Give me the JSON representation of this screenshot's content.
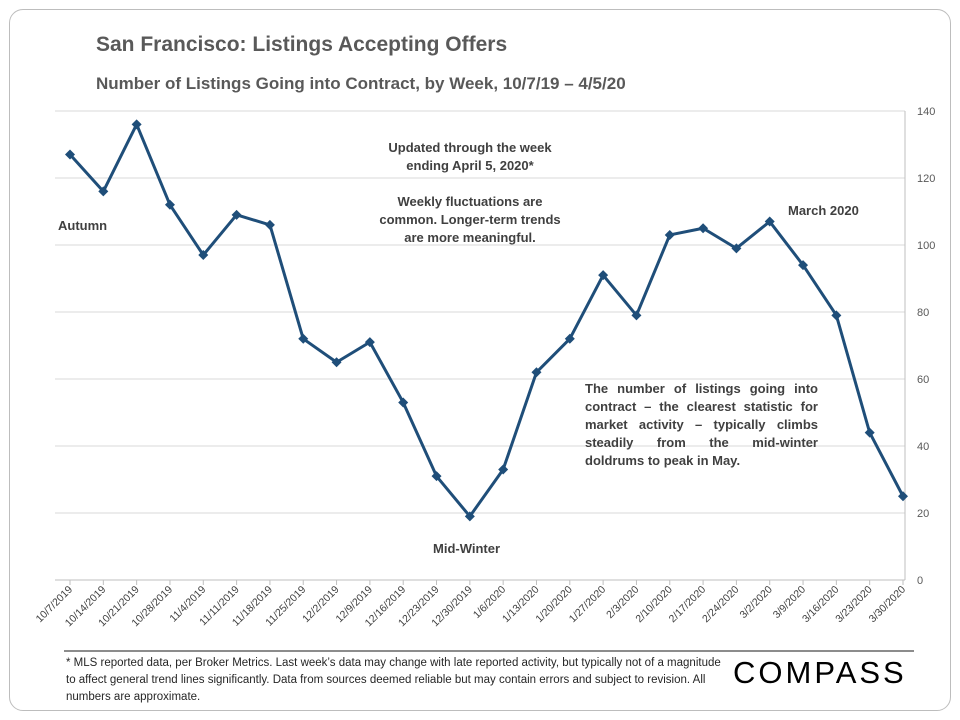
{
  "chart_data": {
    "type": "line",
    "title": "San Francisco: Listings Accepting Offers",
    "subtitle": "Number of Listings Going into Contract, by Week, 10/7/19 – 4/5/20",
    "categories": [
      "10/7/2019",
      "10/14/2019",
      "10/21/2019",
      "10/28/2019",
      "11/4/2019",
      "11/11/2019",
      "11/18/2019",
      "11/25/2019",
      "12/2/2019",
      "12/9/2019",
      "12/16/2019",
      "12/23/2019",
      "12/30/2019",
      "1/6/2020",
      "1/13/2020",
      "1/20/2020",
      "1/27/2020",
      "2/3/2020",
      "2/10/2020",
      "2/17/2020",
      "2/24/2020",
      "3/2/2020",
      "3/9/2020",
      "3/16/2020",
      "3/23/2020",
      "3/30/2020"
    ],
    "values": [
      127,
      116,
      136,
      112,
      97,
      109,
      106,
      72,
      65,
      71,
      53,
      31,
      19,
      33,
      62,
      72,
      91,
      79,
      103,
      105,
      99,
      107,
      94,
      79,
      44,
      25
    ],
    "ylim": [
      0,
      140
    ],
    "yticks": [
      0,
      20,
      40,
      60,
      80,
      100,
      120,
      140
    ],
    "y_axis_side": "right",
    "grid": true,
    "line_color": "#1f4e79",
    "marker": "diamond",
    "annotations": {
      "autumn": "Autumn",
      "midwinter": "Mid-Winter",
      "march": "March 2020",
      "updated_1": "Updated through the week",
      "updated_2": "ending April 5, 2020*",
      "fluct_1": "Weekly fluctuations are",
      "fluct_2": "common. Longer-term trends",
      "fluct_3": "are more meaningful.",
      "note": "The number of listings going into contract – the clearest statistic for market activity – typically climbs steadily from the mid-winter doldrums to peak in May."
    }
  },
  "footnote": "* MLS reported data, per Broker Metrics. Last week’s data may change with late reported activity, but typically not of a magnitude to affect general trend lines significantly. Data from sources deemed reliable but may contain errors and subject to revision. All numbers are approximate.",
  "logo": "COMPASS"
}
